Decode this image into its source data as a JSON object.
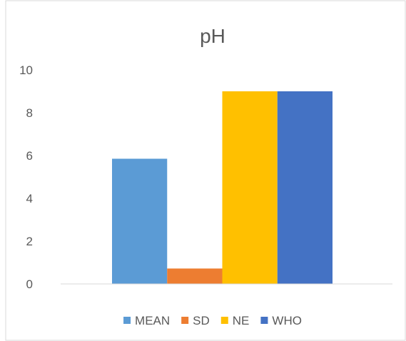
{
  "chart_data": {
    "type": "bar",
    "title": "pH",
    "categories": [
      ""
    ],
    "series": [
      {
        "name": "MEAN",
        "values": [
          5.85
        ],
        "color": "#5B9BD5"
      },
      {
        "name": "SD",
        "values": [
          0.72
        ],
        "color": "#ED7D31"
      },
      {
        "name": "NE",
        "values": [
          9
        ],
        "color": "#FFC000"
      },
      {
        "name": "WHO",
        "values": [
          9
        ],
        "color": "#4472C4"
      }
    ],
    "xlabel": "",
    "ylabel": "",
    "ylim": [
      0,
      10
    ],
    "yticks": [
      "0",
      "2",
      "4",
      "6",
      "8",
      "10"
    ],
    "grid": false,
    "legend_position": "bottom",
    "axis_color": "#D9D9D9",
    "text_color": "#595959",
    "border_color": "#D9D9D9"
  }
}
